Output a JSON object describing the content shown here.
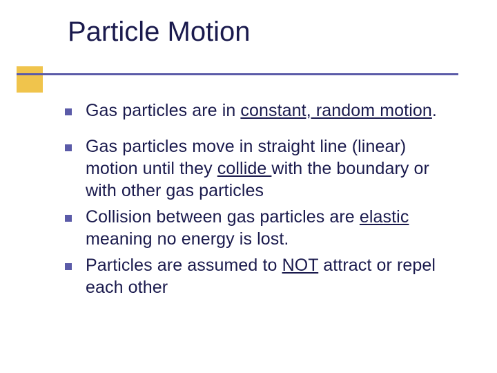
{
  "colors": {
    "accent": "#f0c44c",
    "line": "#5b5ba8",
    "bullet": "#5b5ba8",
    "text": "#1a1a4d",
    "background": "#ffffff"
  },
  "typography": {
    "title_fontsize": 40,
    "body_fontsize": 25,
    "font_family": "Verdana"
  },
  "title": "Particle Motion",
  "bullets": [
    {
      "segments": [
        {
          "text": "Gas particles are in "
        },
        {
          "text": "constant, random motion",
          "underline": true
        },
        {
          "text": "."
        }
      ],
      "gap_after": true
    },
    {
      "segments": [
        {
          "text": "Gas particles move in straight line (linear) motion until they "
        },
        {
          "text": "collide ",
          "underline": true
        },
        {
          "text": "with the boundary or with other gas particles"
        }
      ]
    },
    {
      "segments": [
        {
          "text": "Collision between gas particles are "
        },
        {
          "text": "elastic",
          "underline": true
        },
        {
          "text": " meaning no energy is lost."
        }
      ]
    },
    {
      "segments": [
        {
          "text": "Particles are assumed to "
        },
        {
          "text": "NOT",
          "underline": true
        },
        {
          "text": " attract or repel each other"
        }
      ]
    }
  ]
}
